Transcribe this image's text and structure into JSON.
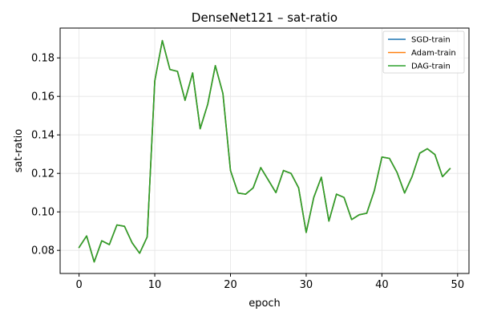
{
  "chart_data": {
    "type": "line",
    "title": "DenseNet121 – sat-ratio",
    "xlabel": "epoch",
    "ylabel": "sat-ratio",
    "xlim": [
      -2.5,
      51.5
    ],
    "ylim": [
      0.068,
      0.1955
    ],
    "xticks": [
      0,
      10,
      20,
      30,
      40,
      50
    ],
    "xtick_labels": [
      "0",
      "10",
      "20",
      "30",
      "40",
      "50"
    ],
    "yticks": [
      0.08,
      0.1,
      0.12,
      0.14,
      0.16,
      0.18
    ],
    "ytick_labels": [
      "0.08",
      "0.10",
      "0.12",
      "0.14",
      "0.16",
      "0.18"
    ],
    "grid": true,
    "legend_position": "top-right",
    "x": [
      0,
      1,
      2,
      3,
      4,
      5,
      6,
      7,
      8,
      9,
      10,
      11,
      12,
      13,
      14,
      15,
      16,
      17,
      18,
      19,
      20,
      21,
      22,
      23,
      24,
      25,
      26,
      27,
      28,
      29,
      30,
      31,
      32,
      33,
      34,
      35,
      36,
      37,
      38,
      39,
      40,
      41,
      42,
      43,
      44,
      45,
      46,
      47,
      48,
      49
    ],
    "series": [
      {
        "name": "SGD-train",
        "color": "#1f77b4",
        "values": [
          0.0815,
          0.0875,
          0.074,
          0.085,
          0.083,
          0.0932,
          0.0925,
          0.084,
          0.0785,
          0.087,
          0.168,
          0.189,
          0.174,
          0.173,
          0.158,
          0.1722,
          0.1432,
          0.156,
          0.176,
          0.1615,
          0.1215,
          0.1098,
          0.1092,
          0.1125,
          0.123,
          0.1165,
          0.11,
          0.1215,
          0.12,
          0.1125,
          0.0893,
          0.1075,
          0.118,
          0.0952,
          0.1092,
          0.1075,
          0.096,
          0.0985,
          0.0993,
          0.111,
          0.1285,
          0.1278,
          0.1205,
          0.1098,
          0.1185,
          0.1305,
          0.1328,
          0.1298,
          0.1183,
          0.1225
        ]
      },
      {
        "name": "Adam-train",
        "color": "#ff7f0e",
        "values": [
          0.0815,
          0.0875,
          0.074,
          0.085,
          0.083,
          0.0932,
          0.0925,
          0.084,
          0.0785,
          0.087,
          0.168,
          0.189,
          0.174,
          0.173,
          0.158,
          0.1722,
          0.1432,
          0.156,
          0.176,
          0.1615,
          0.1215,
          0.1098,
          0.1092,
          0.1125,
          0.123,
          0.1165,
          0.11,
          0.1215,
          0.12,
          0.1125,
          0.0893,
          0.1075,
          0.118,
          0.0952,
          0.1092,
          0.1075,
          0.096,
          0.0985,
          0.0993,
          0.111,
          0.1285,
          0.1278,
          0.1205,
          0.1098,
          0.1185,
          0.1305,
          0.1328,
          0.1298,
          0.1183,
          0.1225
        ]
      },
      {
        "name": "DAG-train",
        "color": "#2ca02c",
        "values": [
          0.0815,
          0.0875,
          0.074,
          0.085,
          0.083,
          0.0932,
          0.0925,
          0.084,
          0.0785,
          0.087,
          0.168,
          0.189,
          0.174,
          0.173,
          0.158,
          0.1722,
          0.1432,
          0.156,
          0.176,
          0.1615,
          0.1215,
          0.1098,
          0.1092,
          0.1125,
          0.123,
          0.1165,
          0.11,
          0.1215,
          0.12,
          0.1125,
          0.0893,
          0.1075,
          0.118,
          0.0952,
          0.1092,
          0.1075,
          0.096,
          0.0985,
          0.0993,
          0.111,
          0.1285,
          0.1278,
          0.1205,
          0.1098,
          0.1185,
          0.1305,
          0.1328,
          0.1298,
          0.1183,
          0.1225
        ]
      }
    ]
  }
}
